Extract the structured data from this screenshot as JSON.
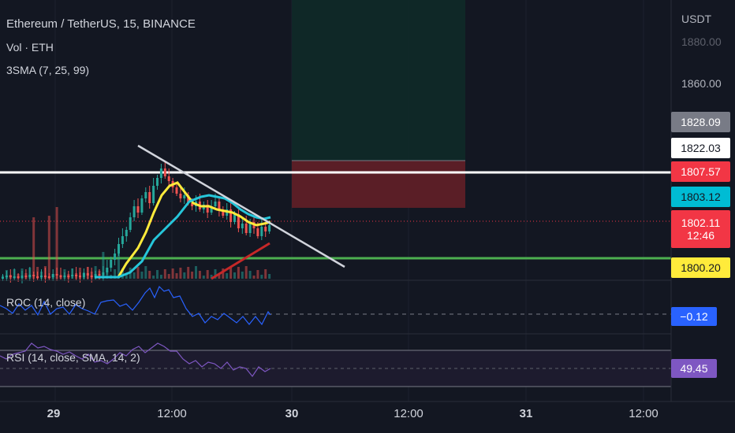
{
  "header": {
    "symbol_title": "Ethereum / TetherUS, 15, BINANCE",
    "vol_label": "Vol · ETH",
    "sma_label": "3SMA (7, 25, 99)",
    "currency": "USDT"
  },
  "price_axis": {
    "ticks": [
      "1880.00",
      "1860.00"
    ]
  },
  "price_tags": {
    "t1": {
      "value": "1828.09",
      "bg": "#787b86",
      "fg": "#ffffff"
    },
    "t2": {
      "value": "1822.03",
      "bg": "#ffffff",
      "fg": "#131722"
    },
    "t3": {
      "value": "1807.57",
      "bg": "#f23645",
      "fg": "#ffffff"
    },
    "t4": {
      "value": "1803.12",
      "bg": "#00bcd4",
      "fg": "#131722"
    },
    "t5": {
      "value": "1802.11",
      "countdown": "12:46",
      "bg": "#f23645",
      "fg": "#ffffff"
    },
    "t6": {
      "value": "1800.20",
      "bg": "#ffeb3b",
      "fg": "#131722"
    }
  },
  "roc": {
    "label": "ROC (14, close)",
    "value": "−0.12",
    "color": "#2962ff"
  },
  "rsi": {
    "label": "RSI (14, close, SMA, 14, 2)",
    "value": "49.45",
    "color": "#7e57c2"
  },
  "time_axis": {
    "labels": [
      "29",
      "12:00",
      "30",
      "12:00",
      "31",
      "12:00"
    ]
  }
}
